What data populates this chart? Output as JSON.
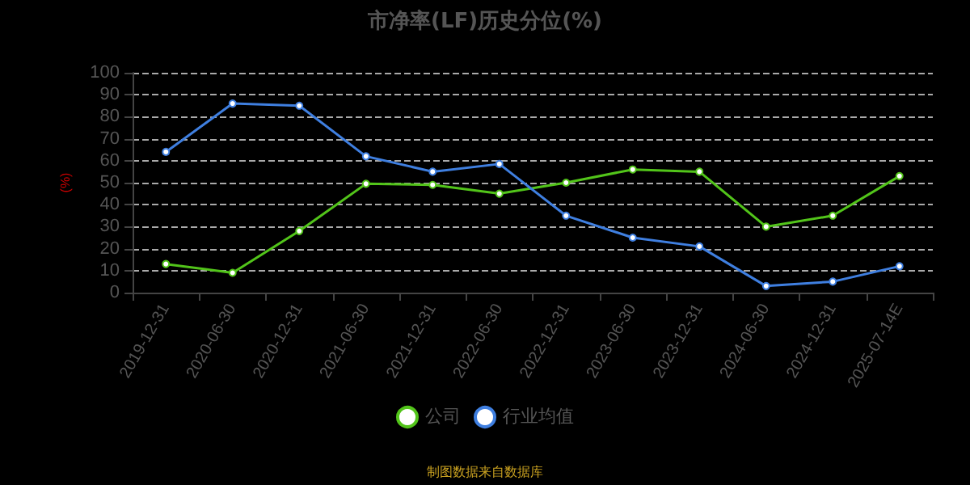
{
  "chart_data": {
    "type": "line",
    "title": "市净率(LF)历史分位(%)",
    "ylabel": "(%)",
    "categories": [
      "2019-12-31",
      "2020-06-30",
      "2020-12-31",
      "2021-06-30",
      "2021-12-31",
      "2022-06-30",
      "2022-12-31",
      "2023-06-30",
      "2023-12-31",
      "2024-06-30",
      "2024-12-31",
      "2025-07-14E"
    ],
    "series": [
      {
        "name": "公司",
        "color": "#52c41a",
        "values": [
          13,
          9,
          28,
          49.5,
          49,
          45,
          50,
          56,
          55,
          30,
          35,
          53
        ]
      },
      {
        "name": "行业均值",
        "color": "#3f7fe0",
        "values": [
          64,
          86,
          85,
          62,
          55,
          58.5,
          35,
          25,
          21,
          3,
          5,
          12
        ]
      }
    ],
    "ylim": [
      0,
      100
    ],
    "yticks": [
      0,
      10,
      20,
      30,
      40,
      50,
      60,
      70,
      80,
      90,
      100
    ],
    "grid": "y",
    "legend": "bottom",
    "marker": "circle",
    "line_style": "solid",
    "annotations": [
      "制图数据来自数据库"
    ]
  }
}
